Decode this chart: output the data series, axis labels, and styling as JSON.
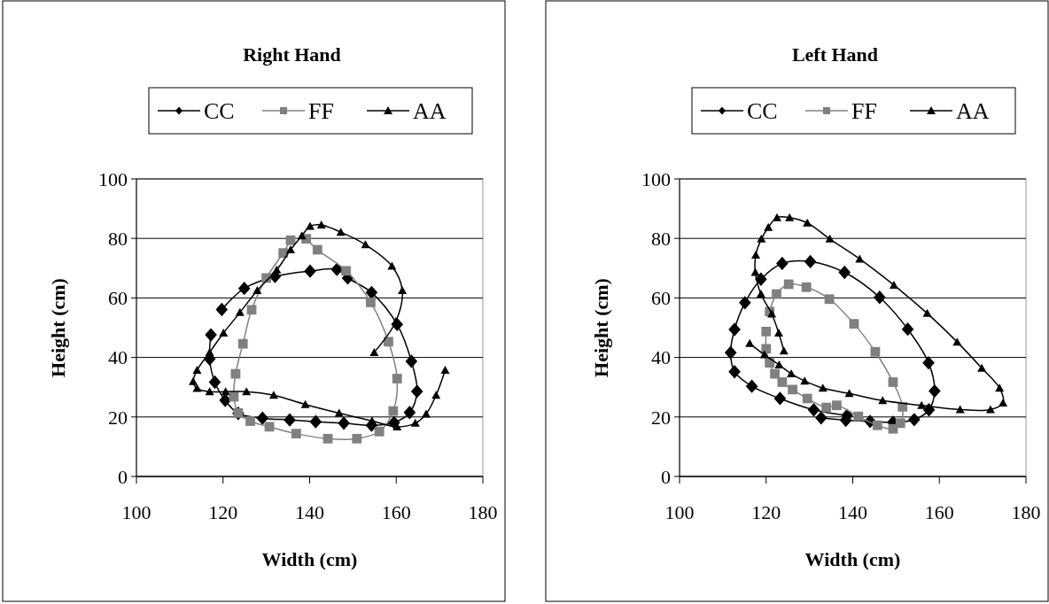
{
  "chart_data": [
    {
      "type": "line",
      "title": "Right Hand",
      "xlabel": "Width (cm)",
      "ylabel": "Height  (cm)",
      "xlim": [
        100,
        180
      ],
      "xticks": [
        100,
        120,
        140,
        160,
        180
      ],
      "ylim": [
        0,
        100
      ],
      "yticks": [
        0,
        20,
        40,
        60,
        80,
        100
      ],
      "grid": "y",
      "legend": "top",
      "series": [
        {
          "name": "CC",
          "color": "#000000",
          "marker": "diamond",
          "x": [
            117.2,
            116.9,
            118.1,
            120.5,
            123.5,
            129.1,
            135.4,
            141.4,
            147.9,
            154.3,
            159.5,
            163.1,
            164.8,
            163.5,
            160.2,
            154.3,
            148.8,
            146.3,
            140.1,
            132.0,
            124.9,
            119.7
          ],
          "values": [
            47.6,
            39.5,
            31.7,
            25.6,
            21.2,
            19.6,
            19.0,
            18.4,
            17.9,
            17.2,
            18.1,
            21.5,
            28.6,
            38.7,
            51.1,
            61.8,
            66.7,
            69.6,
            69.0,
            67.2,
            63.2,
            56.1
          ]
        },
        {
          "name": "FF",
          "color": "#808080",
          "marker": "square",
          "x": [
            135.6,
            133.9,
            130.0,
            126.6,
            124.6,
            122.9,
            122.5,
            123.5,
            126.3,
            130.7,
            136.9,
            144.2,
            150.9,
            156.1,
            159.3,
            160.2,
            158.2,
            154.1,
            148.4,
            141.8,
            139.2
          ],
          "values": [
            79.4,
            75.1,
            66.7,
            56.0,
            44.6,
            34.5,
            26.8,
            21.3,
            18.6,
            16.7,
            14.4,
            12.7,
            12.7,
            15.1,
            22.0,
            32.9,
            45.3,
            58.5,
            69.1,
            76.2,
            79.9
          ]
        },
        {
          "name": "AA",
          "color": "#000000",
          "marker": "triangle",
          "x": [
            154.9,
            159.9,
            161.4,
            159.0,
            152.9,
            147.2,
            142.7,
            140.1,
            138.2,
            135.6,
            132.4,
            127.9,
            123.9,
            120.1,
            116.9,
            114.0,
            113.1,
            114.0,
            116.9,
            120.6,
            125.4,
            131.7,
            139.0,
            146.8,
            154.4,
            160.2,
            164.4,
            166.9,
            169.2,
            171.3
          ],
          "values": [
            41.7,
            52.1,
            62.5,
            70.7,
            77.9,
            82.1,
            84.5,
            84.1,
            80.9,
            76.2,
            69.4,
            62.5,
            55.1,
            48.2,
            41.7,
            35.7,
            31.9,
            29.6,
            28.5,
            28.5,
            28.5,
            27.3,
            24.2,
            21.3,
            18.7,
            16.7,
            17.9,
            21.0,
            27.3,
            35.7
          ]
        }
      ]
    },
    {
      "type": "line",
      "title": "Left Hand",
      "xlabel": "Width (cm)",
      "ylabel": "Height  (cm)",
      "xlim": [
        100,
        180
      ],
      "xticks": [
        100,
        120,
        140,
        160,
        180
      ],
      "ylim": [
        0,
        100
      ],
      "yticks": [
        0,
        20,
        40,
        60,
        80,
        100
      ],
      "grid": "y",
      "legend": "top",
      "series": [
        {
          "name": "CC",
          "color": "#000000",
          "marker": "diamond",
          "x": [
            132.7,
            138.4,
            144.0,
            149.3,
            154.2,
            157.6,
            158.9,
            157.5,
            152.7,
            146.2,
            138.1,
            130.2,
            123.7,
            118.8,
            115.1,
            112.7,
            111.8,
            112.7,
            116.7,
            123.2,
            131.0,
            138.7
          ],
          "values": [
            19.7,
            18.9,
            18.5,
            18.2,
            19.1,
            22.4,
            28.7,
            38.2,
            49.5,
            60.2,
            68.6,
            72.2,
            71.6,
            66.3,
            58.4,
            49.4,
            41.6,
            35.2,
            30.3,
            26.2,
            22.4,
            20.5
          ]
        },
        {
          "name": "FF",
          "color": "#808080",
          "marker": "square",
          "x": [
            120.0,
            120.0,
            120.8,
            122.0,
            123.7,
            126.1,
            129.5,
            133.9,
            136.3,
            141.3,
            145.7,
            149.3,
            151.0,
            151.5,
            149.3,
            145.2,
            140.3,
            134.6,
            129.3,
            125.2,
            122.4,
            120.8
          ],
          "values": [
            48.7,
            42.9,
            38.2,
            34.5,
            31.7,
            29.2,
            26.2,
            23.2,
            23.9,
            20.2,
            17.2,
            16.0,
            17.9,
            23.4,
            31.7,
            41.9,
            51.3,
            59.6,
            63.6,
            64.6,
            61.3,
            55.4
          ]
        },
        {
          "name": "AA",
          "color": "#000000",
          "marker": "triangle",
          "x": [
            124.1,
            122.9,
            121.3,
            118.8,
            117.5,
            117.6,
            118.9,
            120.5,
            122.5,
            125.4,
            129.5,
            134.7,
            141.6,
            149.5,
            157.2,
            164.1,
            169.8,
            173.9,
            174.7,
            171.8,
            164.8,
            155.9,
            146.9,
            139.2,
            133.1,
            128.9,
            125.8,
            123.0,
            119.6,
            116.2
          ],
          "values": [
            42.2,
            48.2,
            54.6,
            61.3,
            68.6,
            74.4,
            79.8,
            83.7,
            87.0,
            87.0,
            85.2,
            79.8,
            73.1,
            64.3,
            54.8,
            45.2,
            36.4,
            29.7,
            24.7,
            22.5,
            22.5,
            23.9,
            25.5,
            27.9,
            29.7,
            32.1,
            34.5,
            37.5,
            40.9,
            44.7
          ]
        }
      ]
    }
  ]
}
